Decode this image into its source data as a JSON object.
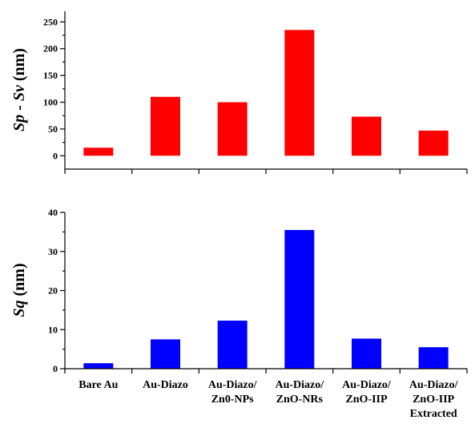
{
  "chart_data": [
    {
      "type": "bar",
      "categories": [
        "Bare Au",
        "Au-Diazo",
        "Au-Diazo/\nZn0-NPs",
        "Au-Diazo/\nZnO-NRs",
        "Au-Diazo/\nZnO-IIP",
        "Au-Diazo/\nZnO-IIP\nExtracted"
      ],
      "values": [
        15,
        110,
        100,
        235,
        73,
        47
      ],
      "ylabel": "Sp - Sv (nm)",
      "ylabel_parts": {
        "a": "Sp",
        "dash": " - ",
        "b": "Sv",
        "unit": " (nm)"
      },
      "ylim": [
        -25,
        270
      ],
      "yticks": [
        0,
        50,
        100,
        150,
        200,
        250
      ],
      "color": "#ff0000",
      "grid": false,
      "show_category_labels": false
    },
    {
      "type": "bar",
      "categories": [
        "Bare Au",
        "Au-Diazo",
        "Au-Diazo/\nZn0-NPs",
        "Au-Diazo/\nZnO-NRs",
        "Au-Diazo/\nZnO-IIP",
        "Au-Diazo/\nZnO-IIP\nExtracted"
      ],
      "values": [
        1.4,
        7.5,
        12.3,
        35.5,
        7.7,
        5.5
      ],
      "ylabel": "Sq (nm)",
      "ylabel_parts": {
        "a": "Sq",
        "unit": " (nm)"
      },
      "ylim": [
        0,
        40
      ],
      "yticks": [
        0,
        10,
        20,
        30,
        40
      ],
      "color": "#0000ff",
      "grid": false,
      "show_category_labels": true
    }
  ]
}
